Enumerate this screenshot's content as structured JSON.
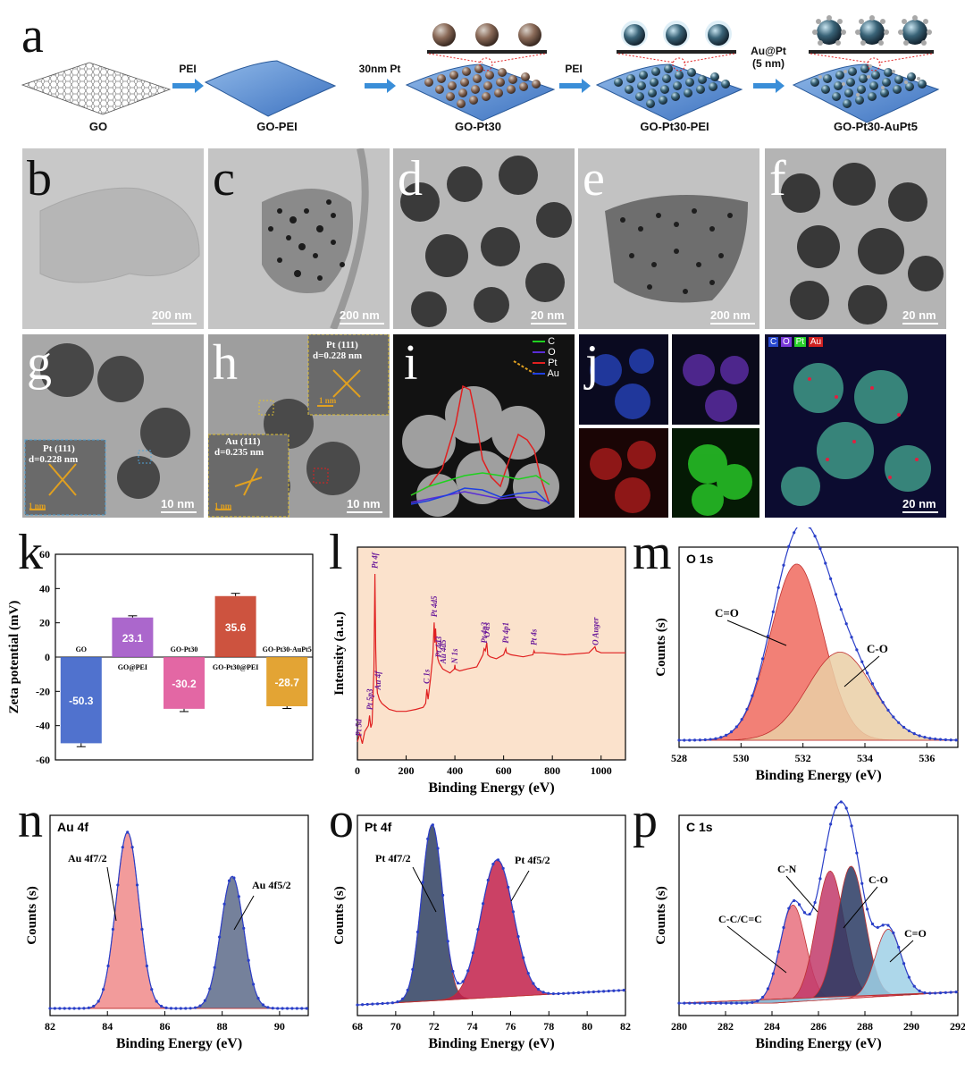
{
  "panels": {
    "a": "a",
    "b": "b",
    "c": "c",
    "d": "d",
    "e": "e",
    "f": "f",
    "g": "g",
    "h": "h",
    "i": "i",
    "j": "j",
    "k": "k",
    "l": "l",
    "m": "m",
    "n": "n",
    "o": "o",
    "p": "p"
  },
  "schematic": {
    "stages": [
      "GO",
      "GO-PEI",
      "GO-Pt30",
      "GO-Pt30-PEI",
      "GO-Pt30-AuPt5"
    ],
    "arrows": [
      "PEI",
      "30nm Pt",
      "PEI",
      "Au@Pt (5 nm)"
    ]
  },
  "tem": {
    "b_scale": "200 nm",
    "c_scale": "200 nm",
    "d_scale": "20 nm",
    "e_scale": "200 nm",
    "f_scale": "20 nm",
    "g_scale": "10 nm",
    "h_scale": "10 nm",
    "map_scale": "20 nm",
    "g_inset": {
      "plane": "Pt (111)",
      "d": "d=0.228 nm",
      "scale": "1 nm"
    },
    "h_inset_top": {
      "plane": "Pt (111)",
      "d": "d=0.228 nm",
      "scale": "1 nm"
    },
    "h_inset_bottom": {
      "plane": "Au (111)",
      "d": "d=0.235 nm",
      "scale": "1 nm"
    },
    "i_legend": [
      "C",
      "O",
      "Pt",
      "Au"
    ],
    "map_legend": [
      "C",
      "O",
      "Pt",
      "Au"
    ]
  },
  "colors": {
    "C": "#1fd11f",
    "O": "#5a2dd6",
    "Pt": "#e02020",
    "Au": "#1f3fe0",
    "xps_red": "#e35a5a",
    "xps_navy": "#2e3f66",
    "xps_pink": "#d9405a",
    "xps_light": "#8fc4de",
    "fit_blue": "#2a3fc8",
    "survey_bg": "#f8dcc0"
  },
  "chart_data": [
    {
      "id": "k",
      "type": "bar",
      "ylabel": "Zeta potential (mV)",
      "ylim": [
        -60,
        60
      ],
      "yticks": [
        -60,
        -40,
        -20,
        0,
        20,
        40,
        60
      ],
      "categories": [
        "GO",
        "GO@PEI",
        "GO-Pt30",
        "GO-Pt30@PEI",
        "GO-Pt30-AuPt5"
      ],
      "values": [
        -50.3,
        23.1,
        -30.2,
        35.6,
        -28.7
      ],
      "errors": [
        2.0,
        1.0,
        1.6,
        1.6,
        1.3
      ],
      "value_labels": [
        "-50.3",
        "23.1",
        "-30.2",
        "35.6",
        "-28.7"
      ],
      "colors": [
        "#3d63c9",
        "#a256c7",
        "#e0579a",
        "#c8402a",
        "#e09a1e"
      ]
    },
    {
      "id": "l",
      "type": "line",
      "xlabel": "Binding Energy (eV)",
      "ylabel": "Intensity (a.u.)",
      "xlim": [
        0,
        1100
      ],
      "xticks": [
        0,
        200,
        400,
        600,
        800,
        1000
      ],
      "x": [
        0,
        10,
        20,
        30,
        45,
        50,
        55,
        60,
        68,
        72,
        75,
        78,
        82,
        85,
        90,
        100,
        110,
        130,
        160,
        200,
        240,
        270,
        280,
        285,
        290,
        300,
        310,
        315,
        318,
        321,
        325,
        330,
        335,
        340,
        350,
        365,
        380,
        398,
        400,
        402,
        420,
        450,
        490,
        515,
        520,
        525,
        531,
        535,
        545,
        570,
        600,
        609,
        612,
        630,
        680,
        720,
        725,
        728,
        760,
        850,
        950,
        975,
        980,
        1000,
        1100
      ],
      "y": [
        0.09,
        0.13,
        0.08,
        0.14,
        0.17,
        0.22,
        0.16,
        0.18,
        0.45,
        0.92,
        0.55,
        0.4,
        0.33,
        0.32,
        0.3,
        0.28,
        0.27,
        0.25,
        0.24,
        0.24,
        0.25,
        0.26,
        0.28,
        0.35,
        0.3,
        0.4,
        0.52,
        0.68,
        0.58,
        0.65,
        0.55,
        0.5,
        0.48,
        0.47,
        0.45,
        0.44,
        0.43,
        0.45,
        0.47,
        0.45,
        0.44,
        0.45,
        0.46,
        0.52,
        0.55,
        0.54,
        0.58,
        0.52,
        0.51,
        0.5,
        0.52,
        0.55,
        0.53,
        0.52,
        0.51,
        0.52,
        0.54,
        0.53,
        0.53,
        0.52,
        0.53,
        0.56,
        0.54,
        0.53,
        0.53
      ],
      "peak_labels": [
        {
          "label": "Pt 5d",
          "x": 5
        },
        {
          "label": "Pt 5p3",
          "x": 52
        },
        {
          "label": "Pt 4f",
          "x": 72
        },
        {
          "label": "Au 4f",
          "x": 84
        },
        {
          "label": "C 1s",
          "x": 285
        },
        {
          "label": "Pt 4d5",
          "x": 315
        },
        {
          "label": "Pt 4d3",
          "x": 333
        },
        {
          "label": "Au 4d5",
          "x": 352
        },
        {
          "label": "N 1s",
          "x": 399
        },
        {
          "label": "Pt 4p3",
          "x": 520
        },
        {
          "label": "O 1s",
          "x": 531
        },
        {
          "label": "Pt 4p1",
          "x": 609
        },
        {
          "label": "Pt 4s",
          "x": 725
        },
        {
          "label": "O Auger",
          "x": 978
        }
      ]
    },
    {
      "id": "m",
      "type": "area",
      "title": "O 1s",
      "xlabel": "Binding Energy (eV)",
      "ylabel": "Counts (s)",
      "xlim": [
        528,
        537
      ],
      "xticks": [
        528,
        530,
        532,
        534,
        536
      ],
      "peaks": [
        {
          "name": "C=O",
          "center": 531.8,
          "height": 1.0,
          "width": 0.85,
          "color": "#f06a5e"
        },
        {
          "name": "C-O",
          "center": 533.2,
          "height": 0.5,
          "width": 1.05,
          "color": "#eacfa6"
        }
      ]
    },
    {
      "id": "n",
      "type": "area",
      "title": "Au 4f",
      "xlabel": "Binding Energy (eV)",
      "ylabel": "Counts (s)",
      "xlim": [
        82,
        91
      ],
      "xticks": [
        82,
        84,
        86,
        88,
        90
      ],
      "peaks": [
        {
          "name": "Au 4f7/2",
          "center": 84.7,
          "height": 1.0,
          "width": 0.4,
          "color": "#f08a8a"
        },
        {
          "name": "Au 4f5/2",
          "center": 88.35,
          "height": 0.75,
          "width": 0.4,
          "color": "#5d6b8a"
        }
      ]
    },
    {
      "id": "o",
      "type": "area",
      "title": "Pt 4f",
      "xlabel": "Binding Energy (eV)",
      "ylabel": "Counts (s)",
      "xlim": [
        68,
        82
      ],
      "xticks": [
        68,
        70,
        72,
        74,
        76,
        78,
        80,
        82
      ],
      "peaks": [
        {
          "name": "Pt 4f7/2",
          "center": 71.9,
          "height": 1.0,
          "width": 0.55,
          "color": "#2f4060"
        },
        {
          "name": "Pt 4f5/2",
          "center": 75.3,
          "height": 0.78,
          "width": 0.85,
          "color": "#c2204a"
        }
      ]
    },
    {
      "id": "p",
      "type": "area",
      "title": "C 1s",
      "xlabel": "Binding Energy (eV)",
      "ylabel": "Counts (s)",
      "xlim": [
        280,
        292
      ],
      "xticks": [
        280,
        282,
        284,
        286,
        288,
        290,
        292
      ],
      "peaks": [
        {
          "name": "C-C/C=C",
          "center": 284.9,
          "height": 0.55,
          "width": 0.55,
          "color": "#e8707e"
        },
        {
          "name": "C-N",
          "center": 286.5,
          "height": 0.73,
          "width": 0.6,
          "color": "#c23a6a"
        },
        {
          "name": "C-O",
          "center": 287.4,
          "height": 0.75,
          "width": 0.6,
          "color": "#293a63"
        },
        {
          "name": "C=O",
          "center": 289.0,
          "height": 0.38,
          "width": 0.55,
          "color": "#9fd0e6"
        }
      ]
    }
  ]
}
